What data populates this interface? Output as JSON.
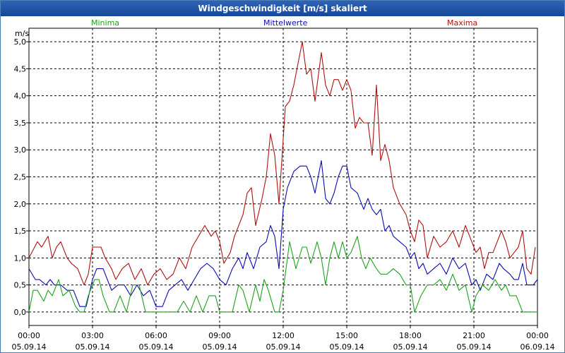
{
  "window": {
    "title": "Windgeschwindigkeit [m/s] skaliert"
  },
  "legend": [
    {
      "name": "Minima",
      "color": "#1aa31a"
    },
    {
      "name": "Mittelwerte",
      "color": "#0a0ab4"
    },
    {
      "name": "Maxima",
      "color": "#b01010"
    }
  ],
  "chart_data": {
    "type": "line",
    "title": "Windgeschwindigkeit [m/s] skaliert",
    "ylabel": "m/s",
    "xlabel": "",
    "ylim": [
      -0.25,
      5.25
    ],
    "xlim_hours": [
      0,
      24
    ],
    "grid": true,
    "legend_position": "top",
    "y_ticks": [
      "0,0",
      "0,5",
      "1,0",
      "1,5",
      "2,0",
      "2,5",
      "3,0",
      "3,5",
      "4,0",
      "4,5",
      "5,0"
    ],
    "x_ticks": [
      {
        "time": "00:00",
        "date": "05.09.14"
      },
      {
        "time": "03:00",
        "date": "05.09.14"
      },
      {
        "time": "06:00",
        "date": "05.09.14"
      },
      {
        "time": "09:00",
        "date": "05.09.14"
      },
      {
        "time": "12:00",
        "date": "05.09.14"
      },
      {
        "time": "15:00",
        "date": "05.09.14"
      },
      {
        "time": "18:00",
        "date": "05.09.14"
      },
      {
        "time": "21:00",
        "date": "05.09.14"
      },
      {
        "time": "00:00",
        "date": "06.09.14"
      }
    ],
    "series": [
      {
        "name": "Maxima",
        "color": "#b01010",
        "points": [
          [
            0,
            1.0
          ],
          [
            0.4,
            1.3
          ],
          [
            0.6,
            1.2
          ],
          [
            0.9,
            1.4
          ],
          [
            1.1,
            1.0
          ],
          [
            1.3,
            1.2
          ],
          [
            1.5,
            1.3
          ],
          [
            1.8,
            1.0
          ],
          [
            2.0,
            0.9
          ],
          [
            2.3,
            0.8
          ],
          [
            2.6,
            0.5
          ],
          [
            2.8,
            0.7
          ],
          [
            3.0,
            1.2
          ],
          [
            3.4,
            1.2
          ],
          [
            3.6,
            1.0
          ],
          [
            3.9,
            0.8
          ],
          [
            4.1,
            0.6
          ],
          [
            4.4,
            0.8
          ],
          [
            4.7,
            0.9
          ],
          [
            5.0,
            0.6
          ],
          [
            5.3,
            0.8
          ],
          [
            5.6,
            0.5
          ],
          [
            5.9,
            0.7
          ],
          [
            6.2,
            0.8
          ],
          [
            6.5,
            0.6
          ],
          [
            6.8,
            0.7
          ],
          [
            7.1,
            1.0
          ],
          [
            7.4,
            0.8
          ],
          [
            7.7,
            1.2
          ],
          [
            8.0,
            1.4
          ],
          [
            8.3,
            1.6
          ],
          [
            8.6,
            1.4
          ],
          [
            8.8,
            1.5
          ],
          [
            9.0,
            1.3
          ],
          [
            9.2,
            0.9
          ],
          [
            9.5,
            1.1
          ],
          [
            9.7,
            1.4
          ],
          [
            9.9,
            1.6
          ],
          [
            10.1,
            1.8
          ],
          [
            10.3,
            2.2
          ],
          [
            10.5,
            2.3
          ],
          [
            10.7,
            1.6
          ],
          [
            11.0,
            2.1
          ],
          [
            11.2,
            2.5
          ],
          [
            11.4,
            3.3
          ],
          [
            11.6,
            2.9
          ],
          [
            11.8,
            2.0
          ],
          [
            12.1,
            3.8
          ],
          [
            12.3,
            3.9
          ],
          [
            12.5,
            4.2
          ],
          [
            12.7,
            4.6
          ],
          [
            12.9,
            5.0
          ],
          [
            13.1,
            4.4
          ],
          [
            13.3,
            4.5
          ],
          [
            13.5,
            3.9
          ],
          [
            13.8,
            4.8
          ],
          [
            14.0,
            4.2
          ],
          [
            14.2,
            4.0
          ],
          [
            14.4,
            4.3
          ],
          [
            14.6,
            4.3
          ],
          [
            14.8,
            4.1
          ],
          [
            15.0,
            4.3
          ],
          [
            15.2,
            4.1
          ],
          [
            15.4,
            3.4
          ],
          [
            15.6,
            3.6
          ],
          [
            15.8,
            3.5
          ],
          [
            16.0,
            3.5
          ],
          [
            16.2,
            2.9
          ],
          [
            16.4,
            4.2
          ],
          [
            16.6,
            2.8
          ],
          [
            16.8,
            3.1
          ],
          [
            17.0,
            2.8
          ],
          [
            17.2,
            2.3
          ],
          [
            17.5,
            2.0
          ],
          [
            17.8,
            1.8
          ],
          [
            18.0,
            1.5
          ],
          [
            18.2,
            1.3
          ],
          [
            18.4,
            1.7
          ],
          [
            18.6,
            1.6
          ],
          [
            18.8,
            1.0
          ],
          [
            19.1,
            1.4
          ],
          [
            19.4,
            1.2
          ],
          [
            19.7,
            1.3
          ],
          [
            20.0,
            1.5
          ],
          [
            20.3,
            1.2
          ],
          [
            20.6,
            1.6
          ],
          [
            20.9,
            1.3
          ],
          [
            21.1,
            1.1
          ],
          [
            21.3,
            1.2
          ],
          [
            21.5,
            0.8
          ],
          [
            21.7,
            1.1
          ],
          [
            21.9,
            1.1
          ],
          [
            22.1,
            1.3
          ],
          [
            22.3,
            1.5
          ],
          [
            22.5,
            1.3
          ],
          [
            22.7,
            1.0
          ],
          [
            22.9,
            1.1
          ],
          [
            23.1,
            1.2
          ],
          [
            23.3,
            1.5
          ],
          [
            23.5,
            0.8
          ],
          [
            23.7,
            0.7
          ],
          [
            23.9,
            1.2
          ]
        ]
      },
      {
        "name": "Mittelwerte",
        "color": "#0a0ab4",
        "points": [
          [
            0,
            0.8
          ],
          [
            0.3,
            0.6
          ],
          [
            0.5,
            0.6
          ],
          [
            0.8,
            0.5
          ],
          [
            1.0,
            0.6
          ],
          [
            1.2,
            0.5
          ],
          [
            1.5,
            0.5
          ],
          [
            1.8,
            0.4
          ],
          [
            2.1,
            0.4
          ],
          [
            2.4,
            0.1
          ],
          [
            2.7,
            0.1
          ],
          [
            3.0,
            0.6
          ],
          [
            3.2,
            0.8
          ],
          [
            3.5,
            0.8
          ],
          [
            3.7,
            0.6
          ],
          [
            3.9,
            0.4
          ],
          [
            4.2,
            0.5
          ],
          [
            4.5,
            0.5
          ],
          [
            4.8,
            0.3
          ],
          [
            5.1,
            0.5
          ],
          [
            5.4,
            0.3
          ],
          [
            5.7,
            0.4
          ],
          [
            6.0,
            0.1
          ],
          [
            6.3,
            0.1
          ],
          [
            6.6,
            0.4
          ],
          [
            6.9,
            0.5
          ],
          [
            7.2,
            0.6
          ],
          [
            7.5,
            0.4
          ],
          [
            7.8,
            0.6
          ],
          [
            8.1,
            0.8
          ],
          [
            8.4,
            0.9
          ],
          [
            8.7,
            0.8
          ],
          [
            9.0,
            0.6
          ],
          [
            9.3,
            0.5
          ],
          [
            9.6,
            0.8
          ],
          [
            9.9,
            1.0
          ],
          [
            10.1,
            0.8
          ],
          [
            10.3,
            1.1
          ],
          [
            10.6,
            0.8
          ],
          [
            10.9,
            1.2
          ],
          [
            11.2,
            1.3
          ],
          [
            11.4,
            1.6
          ],
          [
            11.6,
            1.4
          ],
          [
            11.8,
            0.8
          ],
          [
            12.0,
            1.9
          ],
          [
            12.2,
            2.3
          ],
          [
            12.5,
            2.6
          ],
          [
            12.8,
            2.7
          ],
          [
            13.1,
            2.7
          ],
          [
            13.3,
            2.5
          ],
          [
            13.5,
            2.2
          ],
          [
            13.8,
            2.8
          ],
          [
            14.0,
            2.1
          ],
          [
            14.2,
            2.0
          ],
          [
            14.4,
            2.2
          ],
          [
            14.6,
            2.5
          ],
          [
            14.8,
            2.7
          ],
          [
            15.0,
            2.7
          ],
          [
            15.2,
            2.3
          ],
          [
            15.5,
            2.2
          ],
          [
            15.8,
            1.9
          ],
          [
            16.0,
            2.1
          ],
          [
            16.2,
            1.9
          ],
          [
            16.4,
            1.8
          ],
          [
            16.6,
            1.9
          ],
          [
            16.8,
            1.5
          ],
          [
            17.0,
            1.6
          ],
          [
            17.2,
            1.4
          ],
          [
            17.5,
            1.3
          ],
          [
            17.8,
            1.2
          ],
          [
            18.0,
            1.0
          ],
          [
            18.2,
            1.1
          ],
          [
            18.4,
            0.8
          ],
          [
            18.6,
            0.9
          ],
          [
            18.8,
            0.7
          ],
          [
            19.1,
            0.8
          ],
          [
            19.4,
            0.9
          ],
          [
            19.7,
            0.7
          ],
          [
            20.0,
            1.0
          ],
          [
            20.3,
            0.8
          ],
          [
            20.6,
            0.9
          ],
          [
            20.9,
            0.5
          ],
          [
            21.1,
            0.6
          ],
          [
            21.3,
            0.4
          ],
          [
            21.6,
            0.7
          ],
          [
            21.9,
            0.6
          ],
          [
            22.2,
            0.9
          ],
          [
            22.4,
            0.8
          ],
          [
            22.7,
            0.7
          ],
          [
            22.9,
            0.6
          ],
          [
            23.1,
            0.6
          ],
          [
            23.3,
            0.9
          ],
          [
            23.5,
            0.5
          ],
          [
            23.8,
            0.5
          ],
          [
            24.0,
            0.6
          ]
        ]
      },
      {
        "name": "Minima",
        "color": "#1aa31a",
        "points": [
          [
            0,
            0.0
          ],
          [
            0.2,
            0.4
          ],
          [
            0.4,
            0.4
          ],
          [
            0.7,
            0.2
          ],
          [
            0.9,
            0.4
          ],
          [
            1.1,
            0.3
          ],
          [
            1.4,
            0.6
          ],
          [
            1.6,
            0.3
          ],
          [
            1.9,
            0.4
          ],
          [
            2.2,
            0.1
          ],
          [
            2.4,
            0.0
          ],
          [
            2.6,
            0.0
          ],
          [
            2.8,
            0.3
          ],
          [
            3.1,
            0.6
          ],
          [
            3.3,
            0.6
          ],
          [
            3.5,
            0.3
          ],
          [
            3.8,
            0.0
          ],
          [
            4.0,
            0.0
          ],
          [
            4.3,
            0.3
          ],
          [
            4.6,
            0.0
          ],
          [
            4.9,
            0.5
          ],
          [
            5.2,
            0.5
          ],
          [
            5.5,
            0.0
          ],
          [
            5.8,
            0.0
          ],
          [
            6.1,
            0.0
          ],
          [
            6.4,
            0.0
          ],
          [
            6.7,
            0.0
          ],
          [
            7.0,
            0.0
          ],
          [
            7.3,
            0.2
          ],
          [
            7.6,
            0.0
          ],
          [
            7.9,
            0.3
          ],
          [
            8.2,
            0.0
          ],
          [
            8.5,
            0.3
          ],
          [
            8.8,
            0.3
          ],
          [
            9.0,
            0.0
          ],
          [
            9.3,
            0.0
          ],
          [
            9.6,
            0.0
          ],
          [
            9.9,
            0.5
          ],
          [
            10.1,
            0.4
          ],
          [
            10.4,
            0.0
          ],
          [
            10.7,
            0.5
          ],
          [
            10.9,
            0.2
          ],
          [
            11.1,
            0.6
          ],
          [
            11.3,
            0.4
          ],
          [
            11.6,
            0.0
          ],
          [
            11.8,
            0.0
          ],
          [
            12.0,
            0.4
          ],
          [
            12.3,
            1.3
          ],
          [
            12.6,
            0.8
          ],
          [
            12.9,
            1.2
          ],
          [
            13.1,
            1.2
          ],
          [
            13.3,
            0.9
          ],
          [
            13.6,
            1.3
          ],
          [
            13.8,
            1.0
          ],
          [
            14.0,
            0.5
          ],
          [
            14.2,
            1.0
          ],
          [
            14.4,
            1.3
          ],
          [
            14.6,
            1.0
          ],
          [
            14.8,
            1.3
          ],
          [
            15.0,
            1.0
          ],
          [
            15.2,
            1.1
          ],
          [
            15.5,
            1.4
          ],
          [
            15.7,
            1.0
          ],
          [
            15.9,
            0.8
          ],
          [
            16.1,
            1.0
          ],
          [
            16.4,
            0.8
          ],
          [
            16.6,
            0.7
          ],
          [
            16.9,
            0.7
          ],
          [
            17.2,
            0.8
          ],
          [
            17.5,
            0.7
          ],
          [
            17.8,
            0.5
          ],
          [
            18.0,
            0.5
          ],
          [
            18.2,
            0.0
          ],
          [
            18.5,
            0.3
          ],
          [
            18.8,
            0.5
          ],
          [
            19.1,
            0.5
          ],
          [
            19.4,
            0.6
          ],
          [
            19.7,
            0.4
          ],
          [
            20.0,
            0.7
          ],
          [
            20.3,
            0.4
          ],
          [
            20.6,
            0.5
          ],
          [
            20.9,
            0.0
          ],
          [
            21.1,
            0.3
          ],
          [
            21.4,
            0.5
          ],
          [
            21.7,
            0.4
          ],
          [
            22.0,
            0.6
          ],
          [
            22.3,
            0.4
          ],
          [
            22.5,
            0.5
          ],
          [
            22.7,
            0.3
          ],
          [
            23.0,
            0.3
          ],
          [
            23.3,
            0.0
          ],
          [
            23.6,
            0.0
          ],
          [
            24.0,
            0.0
          ]
        ]
      }
    ]
  }
}
